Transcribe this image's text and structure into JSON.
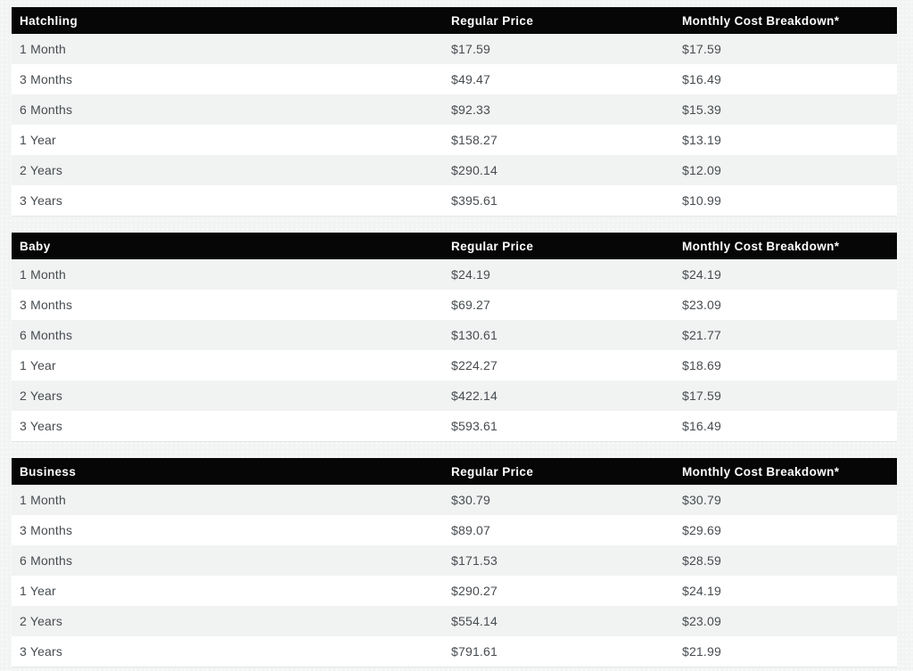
{
  "colors": {
    "page_bg": "#f2f4f4",
    "page_dot": "#fafbfb",
    "header_bg": "#060606",
    "header_text": "#ffffff",
    "stripe": "#f1f2f2",
    "row_white": "#ffffff",
    "row_text": "#474c50"
  },
  "column_headers": {
    "regular": "Regular Price",
    "monthly": "Monthly Cost Breakdown*"
  },
  "tables": [
    {
      "name": "Hatchling",
      "rows": [
        {
          "term": "1 Month",
          "regular": "$17.59",
          "monthly": "$17.59"
        },
        {
          "term": "3 Months",
          "regular": "$49.47",
          "monthly": "$16.49"
        },
        {
          "term": "6 Months",
          "regular": "$92.33",
          "monthly": "$15.39"
        },
        {
          "term": "1 Year",
          "regular": "$158.27",
          "monthly": "$13.19"
        },
        {
          "term": "2 Years",
          "regular": "$290.14",
          "monthly": "$12.09"
        },
        {
          "term": "3 Years",
          "regular": "$395.61",
          "monthly": "$10.99"
        }
      ]
    },
    {
      "name": "Baby",
      "rows": [
        {
          "term": "1 Month",
          "regular": "$24.19",
          "monthly": "$24.19"
        },
        {
          "term": "3 Months",
          "regular": "$69.27",
          "monthly": "$23.09"
        },
        {
          "term": "6 Months",
          "regular": "$130.61",
          "monthly": "$21.77"
        },
        {
          "term": "1 Year",
          "regular": "$224.27",
          "monthly": "$18.69"
        },
        {
          "term": "2 Years",
          "regular": "$422.14",
          "monthly": "$17.59"
        },
        {
          "term": "3 Years",
          "regular": "$593.61",
          "monthly": "$16.49"
        }
      ]
    },
    {
      "name": "Business",
      "rows": [
        {
          "term": "1 Month",
          "regular": "$30.79",
          "monthly": "$30.79"
        },
        {
          "term": "3 Months",
          "regular": "$89.07",
          "monthly": "$29.69"
        },
        {
          "term": "6 Months",
          "regular": "$171.53",
          "monthly": "$28.59"
        },
        {
          "term": "1 Year",
          "regular": "$290.27",
          "monthly": "$24.19"
        },
        {
          "term": "2 Years",
          "regular": "$554.14",
          "monthly": "$23.09"
        },
        {
          "term": "3 Years",
          "regular": "$791.61",
          "monthly": "$21.99"
        }
      ]
    }
  ]
}
